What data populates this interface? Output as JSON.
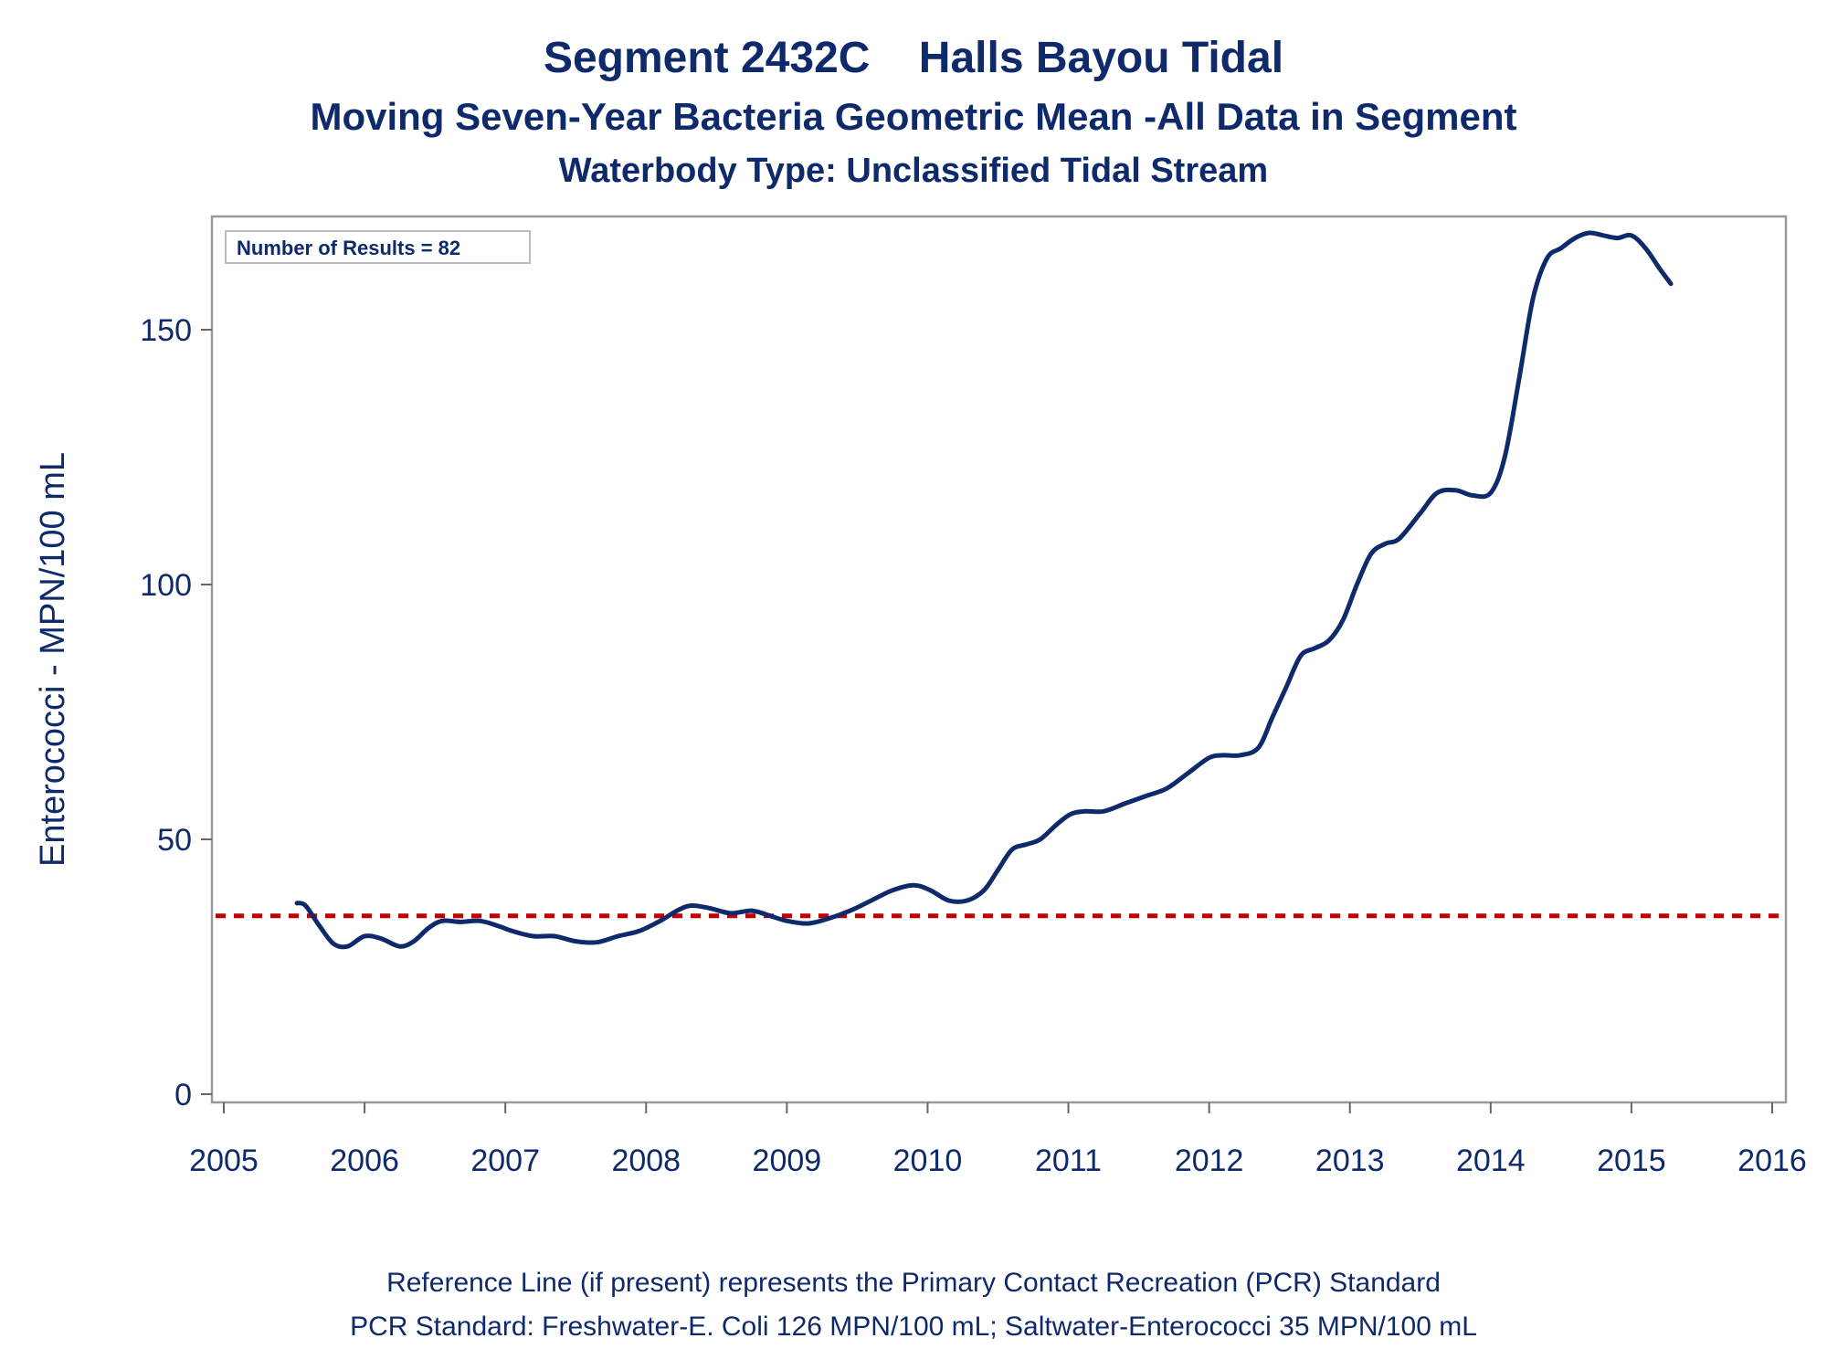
{
  "title": {
    "line1": "Segment 2432C    Halls Bayou Tidal",
    "line2": "Moving Seven-Year Bacteria Geometric Mean -All Data in Segment",
    "line3": "Waterbody Type: Unclassified Tidal Stream"
  },
  "footer": {
    "line1": "Reference Line (if present) represents the Primary Contact Recreation (PCR) Standard",
    "line2": "PCR Standard: Freshwater-E. Coli 126 MPN/100 mL; Saltwater-Enterococci 35 MPN/100 mL"
  },
  "inset": {
    "label": "Number of Results = 82"
  },
  "colors": {
    "line": "#0f2a6b",
    "reference": "#c00000",
    "frame": "#999999",
    "text": "#0f2a6b"
  },
  "chart_data": {
    "type": "line",
    "ylabel": "Enterococci - MPN/100 mL",
    "xlabel": "",
    "xlim": [
      2005,
      2016
    ],
    "ylim": [
      0,
      170
    ],
    "x_ticks": [
      2005,
      2006,
      2007,
      2008,
      2009,
      2010,
      2011,
      2012,
      2013,
      2014,
      2015,
      2016
    ],
    "y_ticks": [
      0,
      50,
      100,
      150
    ],
    "grid": false,
    "reference_line": {
      "y": 35,
      "style": "dashed"
    },
    "series": [
      {
        "x": [
          2005.52,
          2005.58,
          2005.68,
          2005.78,
          2005.88,
          2006.0,
          2006.12,
          2006.25,
          2006.35,
          2006.45,
          2006.55,
          2006.68,
          2006.82,
          2006.95,
          2007.05,
          2007.2,
          2007.35,
          2007.5,
          2007.65,
          2007.8,
          2007.95,
          2008.1,
          2008.22,
          2008.32,
          2008.45,
          2008.6,
          2008.75,
          2008.88,
          2009.0,
          2009.15,
          2009.3,
          2009.45,
          2009.6,
          2009.75,
          2009.9,
          2010.02,
          2010.15,
          2010.28,
          2010.4,
          2010.5,
          2010.6,
          2010.7,
          2010.8,
          2010.92,
          2011.02,
          2011.12,
          2011.25,
          2011.4,
          2011.55,
          2011.7,
          2011.85,
          2012.0,
          2012.1,
          2012.22,
          2012.35,
          2012.45,
          2012.55,
          2012.65,
          2012.75,
          2012.85,
          2012.95,
          2013.05,
          2013.15,
          2013.25,
          2013.35,
          2013.5,
          2013.62,
          2013.75,
          2013.87,
          2014.0,
          2014.1,
          2014.2,
          2014.3,
          2014.4,
          2014.5,
          2014.6,
          2014.7,
          2014.8,
          2014.9,
          2015.0,
          2015.1,
          2015.2,
          2015.28
        ],
        "y": [
          37.5,
          37,
          33,
          29.5,
          29,
          31,
          30.5,
          29,
          30,
          32.5,
          34,
          33.8,
          34,
          33,
          32,
          31,
          31,
          30,
          29.8,
          31,
          32,
          34,
          36,
          37,
          36.5,
          35.5,
          36,
          35,
          34,
          33.5,
          34.5,
          36,
          38,
          40,
          41,
          40,
          38,
          38,
          40,
          44,
          48,
          49,
          50,
          53,
          55,
          55.5,
          55.5,
          57,
          58.5,
          60,
          63,
          66,
          66.5,
          66.5,
          68,
          74,
          80,
          86,
          87.5,
          89,
          93,
          100,
          106,
          108,
          109,
          114,
          118,
          118.5,
          117.5,
          118,
          125,
          140,
          156,
          164,
          166,
          168,
          169,
          168.5,
          168,
          168.5,
          166,
          162,
          159
        ]
      }
    ]
  }
}
